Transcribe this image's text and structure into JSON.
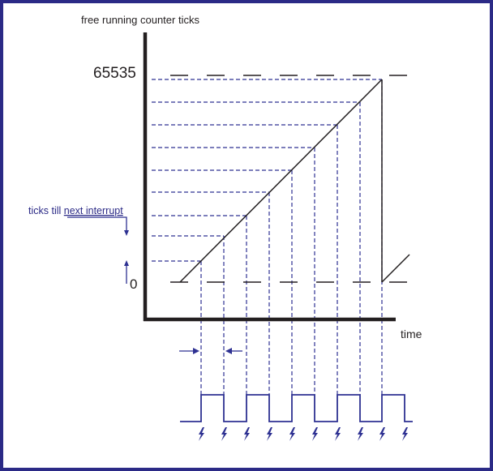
{
  "diagram": {
    "y_axis_label": "free running counter ticks",
    "x_axis_label": "time",
    "y_max_label": "65535",
    "y_min_label": "0",
    "annotation": {
      "prefix": "ticks till ",
      "underlined": "next interrupt"
    },
    "colors": {
      "frame": "#2b2a86",
      "axis": "#231f20",
      "guide": "#2e3192",
      "waveform": "#2e3192"
    },
    "icons": [
      "lightning-icon"
    ]
  }
}
